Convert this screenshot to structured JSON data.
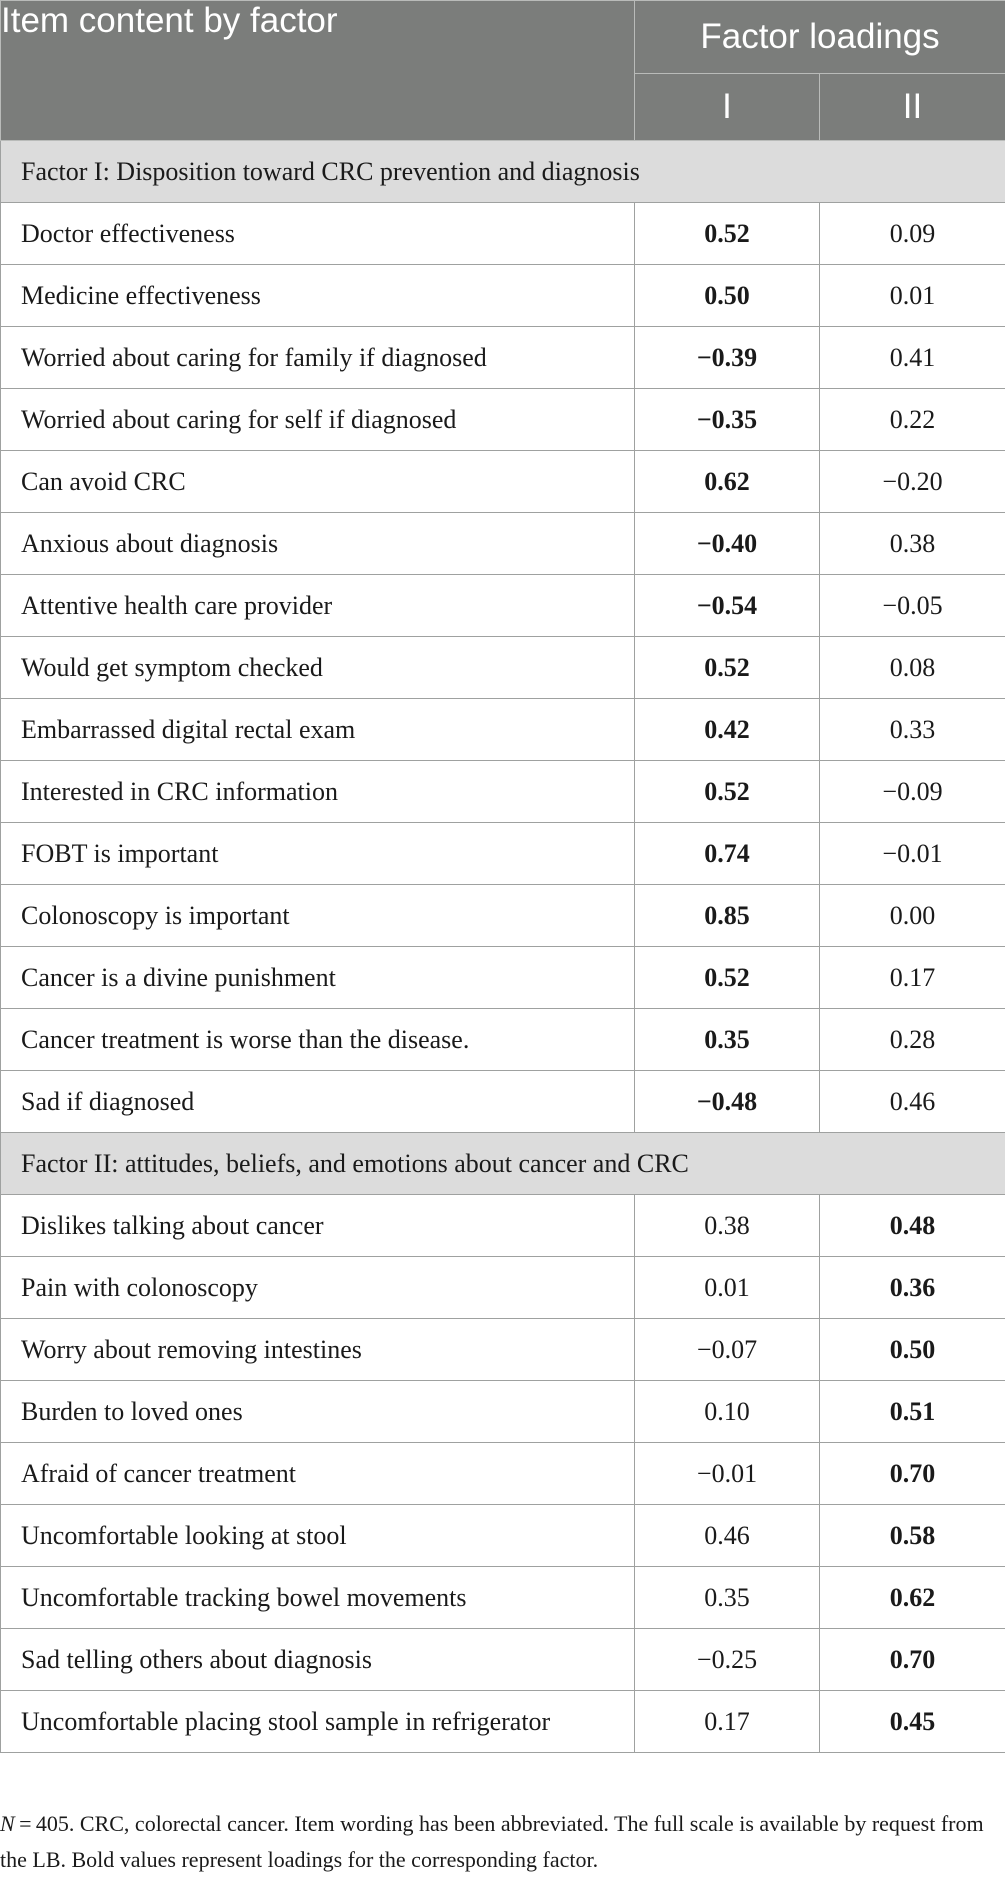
{
  "table": {
    "header": {
      "item_col": "Item content by factor",
      "loadings_col": "Factor loadings",
      "factor_1": "I",
      "factor_2": "II"
    },
    "sections": [
      {
        "title": "Factor I: Disposition toward CRC prevention and diagnosis",
        "bold_column": 1,
        "rows": [
          {
            "item": "Doctor effectiveness",
            "f1": "0.52",
            "f2": "0.09"
          },
          {
            "item": "Medicine effectiveness",
            "f1": "0.50",
            "f2": "0.01"
          },
          {
            "item": "Worried about caring for family if diagnosed",
            "f1": "−0.39",
            "f2": "0.41"
          },
          {
            "item": "Worried about caring for self if diagnosed",
            "f1": "−0.35",
            "f2": "0.22"
          },
          {
            "item": "Can avoid CRC",
            "f1": "0.62",
            "f2": "−0.20"
          },
          {
            "item": "Anxious about diagnosis",
            "f1": "−0.40",
            "f2": "0.38"
          },
          {
            "item": "Attentive health care provider",
            "f1": "−0.54",
            "f2": "−0.05"
          },
          {
            "item": "Would get symptom checked",
            "f1": "0.52",
            "f2": "0.08"
          },
          {
            "item": "Embarrassed digital rectal exam",
            "f1": "0.42",
            "f2": "0.33"
          },
          {
            "item": "Interested in CRC information",
            "f1": "0.52",
            "f2": "−0.09"
          },
          {
            "item": "FOBT is important",
            "f1": "0.74",
            "f2": "−0.01"
          },
          {
            "item": "Colonoscopy is important",
            "f1": "0.85",
            "f2": "0.00"
          },
          {
            "item": "Cancer is a divine punishment",
            "f1": "0.52",
            "f2": "0.17"
          },
          {
            "item": "Cancer treatment is worse than the disease.",
            "f1": "0.35",
            "f2": "0.28"
          },
          {
            "item": "Sad if diagnosed",
            "f1": "−0.48",
            "f2": "0.46"
          }
        ]
      },
      {
        "title": "Factor II: attitudes, beliefs, and emotions about cancer and CRC",
        "bold_column": 2,
        "rows": [
          {
            "item": "Dislikes talking about cancer",
            "f1": "0.38",
            "f2": "0.48"
          },
          {
            "item": "Pain with colonoscopy",
            "f1": "0.01",
            "f2": "0.36"
          },
          {
            "item": "Worry about removing intestines",
            "f1": "−0.07",
            "f2": "0.50"
          },
          {
            "item": "Burden to loved ones",
            "f1": "0.10",
            "f2": "0.51"
          },
          {
            "item": "Afraid of cancer treatment",
            "f1": "−0.01",
            "f2": "0.70"
          },
          {
            "item": "Uncomfortable looking at stool",
            "f1": "0.46",
            "f2": "0.58"
          },
          {
            "item": "Uncomfortable tracking bowel movements",
            "f1": "0.35",
            "f2": "0.62"
          },
          {
            "item": "Sad telling others about diagnosis",
            "f1": "−0.25",
            "f2": "0.70"
          },
          {
            "item": "Uncomfortable placing stool sample in refrigerator",
            "f1": "0.17",
            "f2": "0.45"
          }
        ]
      }
    ]
  },
  "note": {
    "n_label": "N",
    "text": " = 405. CRC, colorectal cancer. Item wording has been abbreviated. The full scale is available by request from the LB. Bold values represent loadings for the corresponding factor."
  }
}
